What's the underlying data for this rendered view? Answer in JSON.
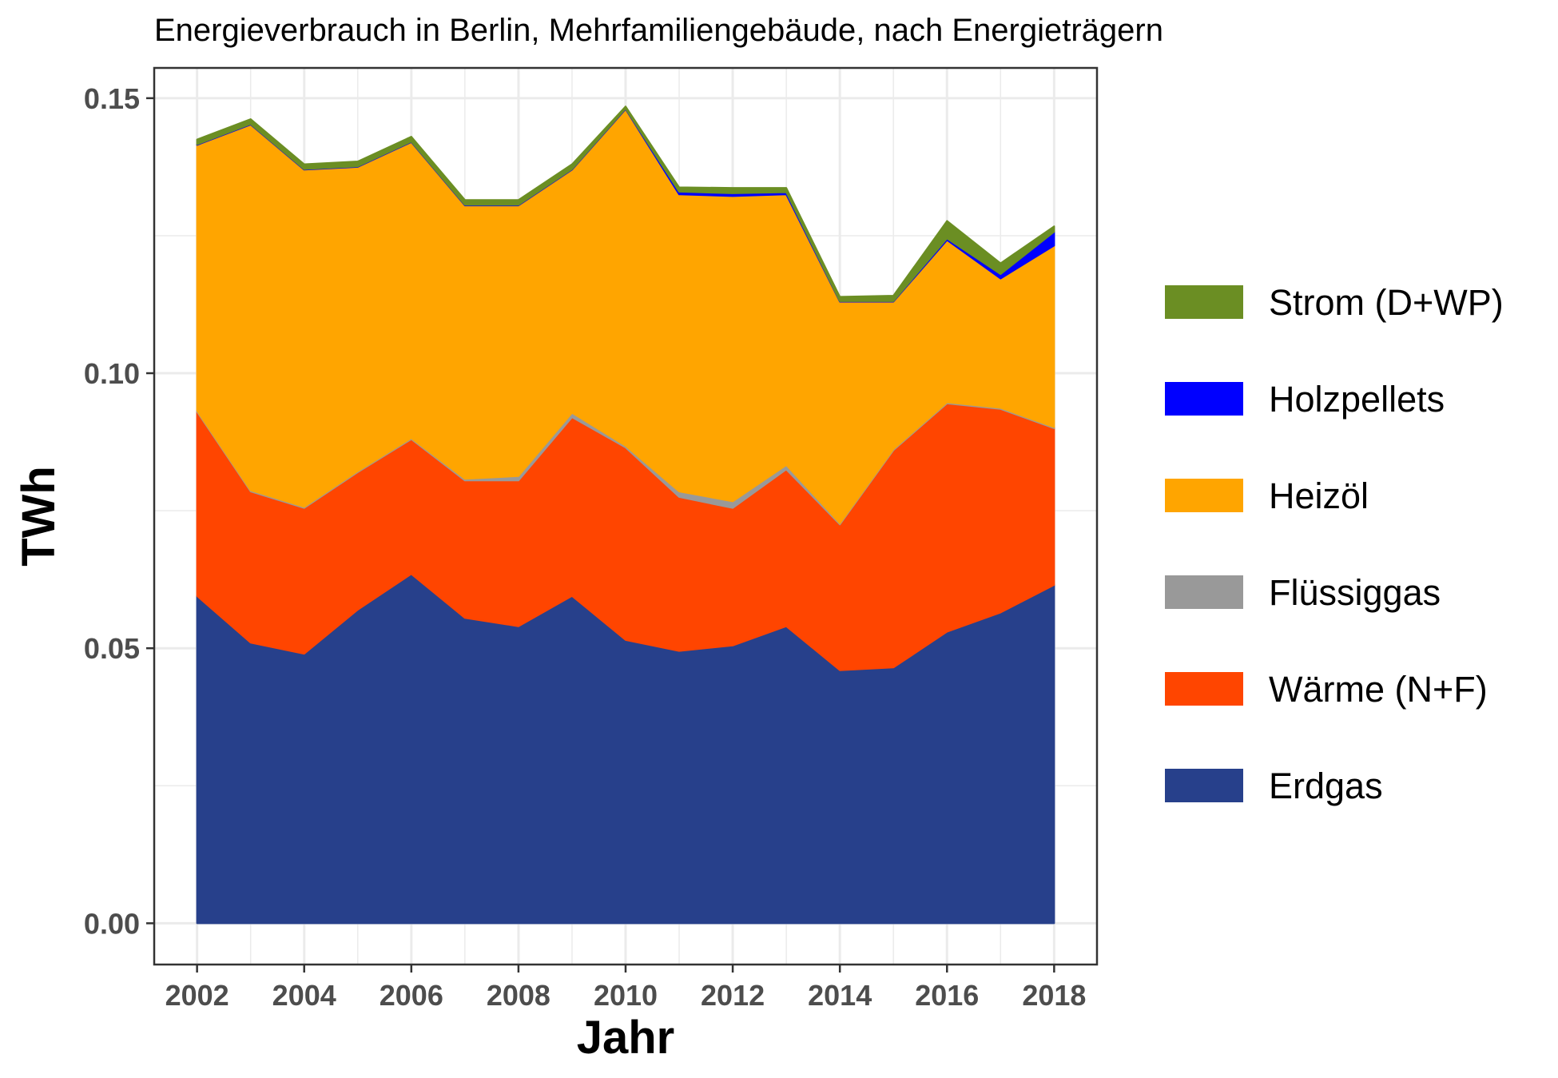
{
  "chart_data": {
    "type": "area",
    "stacked": true,
    "title": "Energieverbrauch in Berlin, Mehrfamiliengebäude, nach Energieträgern",
    "xlabel": "Jahr",
    "ylabel": "TWh",
    "xlim": [
      2001.2,
      2018.8
    ],
    "ylim": [
      -0.0075,
      0.1555
    ],
    "x_ticks": [
      "2002",
      "2004",
      "2006",
      "2008",
      "2010",
      "2012",
      "2014",
      "2016",
      "2018"
    ],
    "y_ticks": [
      "0.00",
      "0.05",
      "0.10",
      "0.15"
    ],
    "grid": true,
    "legend_position": "right",
    "x": [
      2002,
      2003,
      2004,
      2005,
      2006,
      2007,
      2008,
      2009,
      2010,
      2011,
      2012,
      2013,
      2014,
      2015,
      2016,
      2017,
      2018
    ],
    "series": [
      {
        "name": "Erdgas",
        "color": "#27408B",
        "values": [
          0.0595,
          0.051,
          0.049,
          0.057,
          0.0635,
          0.0555,
          0.054,
          0.0595,
          0.0515,
          0.0495,
          0.0505,
          0.054,
          0.046,
          0.0465,
          0.053,
          0.0565,
          0.0615
        ]
      },
      {
        "name": "Wärme (N+F)",
        "color": "#FF4500",
        "values": [
          0.0335,
          0.0275,
          0.0265,
          0.025,
          0.0245,
          0.025,
          0.0265,
          0.0325,
          0.035,
          0.028,
          0.025,
          0.0285,
          0.0265,
          0.0395,
          0.0415,
          0.037,
          0.0285
        ]
      },
      {
        "name": "Flüssiggas",
        "color": "#999999",
        "values": [
          0.0002,
          0.0002,
          0.0002,
          0.0002,
          0.0002,
          0.0003,
          0.0008,
          0.0008,
          0.0003,
          0.001,
          0.0012,
          0.0008,
          0.0002,
          0.0002,
          0.0002,
          0.0002,
          0.0002
        ]
      },
      {
        "name": "Heizöl",
        "color": "#FFA500",
        "values": [
          0.0483,
          0.0665,
          0.0613,
          0.0553,
          0.0538,
          0.0497,
          0.0492,
          0.0442,
          0.0612,
          0.054,
          0.0555,
          0.0492,
          0.0403,
          0.0268,
          0.0295,
          0.0235,
          0.033
        ]
      },
      {
        "name": "Holzpellets",
        "color": "#0000FF",
        "values": [
          0.0001,
          0.0001,
          0.0001,
          0.0001,
          0.0001,
          0.0001,
          0.0001,
          0.0001,
          0.0001,
          0.0005,
          0.0005,
          0.0004,
          0.0001,
          0.0001,
          0.0003,
          0.0008,
          0.0025
        ]
      },
      {
        "name": "Strom (D+WP)",
        "color": "#6B8E23",
        "values": [
          0.0009,
          0.0009,
          0.0009,
          0.0009,
          0.0009,
          0.0009,
          0.0009,
          0.0009,
          0.0004,
          0.0008,
          0.001,
          0.0008,
          0.0008,
          0.001,
          0.0032,
          0.002,
          0.001
        ]
      }
    ],
    "legend_order": [
      "Strom (D+WP)",
      "Holzpellets",
      "Heizöl",
      "Flüssiggas",
      "Wärme (N+F)",
      "Erdgas"
    ]
  }
}
